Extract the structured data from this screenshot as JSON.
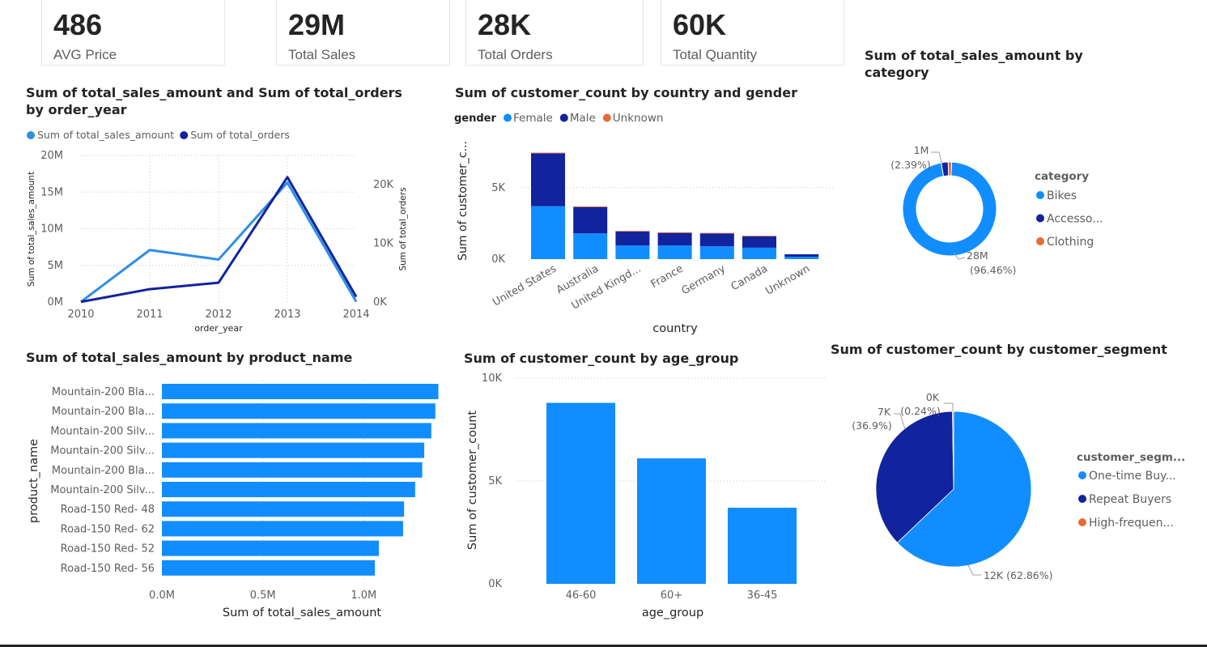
{
  "kpis": [
    {
      "value": "486",
      "label": "AVG Price"
    },
    {
      "value": "29M",
      "label": "Total Sales"
    },
    {
      "value": "28K",
      "label": "Total Orders"
    },
    {
      "value": "60K",
      "label": "Total Quantity"
    }
  ],
  "colors": {
    "blue": "#118dff",
    "dark": "#12239e",
    "orange": "#e66c37",
    "lightblue": "#2d8fe6",
    "grid": "#c8c6c4",
    "text": "#252423",
    "axis": "#605e5c"
  },
  "chart_data": [
    {
      "type": "line",
      "title": "Sum of total_sales_amount and Sum of total_orders by order_year",
      "xlabel": "order_year",
      "ylabel": "Sum of total_sales_amount",
      "y2label": "Sum of total_orders",
      "x": [
        "2010",
        "2011",
        "2012",
        "2013",
        "2014"
      ],
      "ylim": [
        0,
        20000000
      ],
      "y_ticks": [
        "0M",
        "5M",
        "10M",
        "15M",
        "20M"
      ],
      "y2lim": [
        0,
        25000
      ],
      "y2_ticks": [
        "0K",
        "10K",
        "20K"
      ],
      "legend": "top-left",
      "series": [
        {
          "name": "Sum of total_sales_amount",
          "axis": "left",
          "values": [
            40000,
            7100000,
            5800000,
            16300000,
            50000
          ]
        },
        {
          "name": "Sum of total_orders",
          "axis": "right",
          "values": [
            30,
            2200,
            3300,
            21300,
            900
          ]
        }
      ]
    },
    {
      "type": "bar",
      "stacked": true,
      "title": "Sum of customer_count by country and gender",
      "legend_title": "gender",
      "xlabel": "country",
      "ylabel": "Sum of customer_c...",
      "categories": [
        "United States",
        "Australia",
        "United Kingd...",
        "France",
        "Germany",
        "Canada",
        "Unknown"
      ],
      "ylim": [
        0,
        8500
      ],
      "y_ticks": [
        "0K",
        "5K"
      ],
      "series": [
        {
          "name": "Female",
          "values": [
            3700,
            1800,
            950,
            950,
            900,
            800,
            170
          ]
        },
        {
          "name": "Male",
          "values": [
            3700,
            1870,
            1010,
            910,
            920,
            820,
            170
          ]
        },
        {
          "name": "Unknown",
          "values": [
            50,
            10,
            10,
            10,
            10,
            10,
            0
          ]
        }
      ]
    },
    {
      "type": "pie",
      "donut": true,
      "title": "Sum of total_sales_amount by category",
      "legend_title": "category",
      "labels": [
        "Bikes",
        "Accesso...",
        "Clothing"
      ],
      "values": [
        28000000,
        700000,
        340000
      ],
      "percent": [
        96.46,
        2.39,
        1.15
      ],
      "data_labels": [
        {
          "value": "28M",
          "pct": "(96.46%)"
        },
        {
          "value": "1M",
          "pct": "(2.39%)"
        }
      ]
    },
    {
      "type": "bar",
      "orientation": "horizontal",
      "title": "Sum of total_sales_amount by product_name",
      "xlabel": "Sum of total_sales_amount",
      "ylabel": "product_name",
      "categories": [
        "Mountain-200 Bla...",
        "Mountain-200 Bla...",
        "Mountain-200 Silv...",
        "Mountain-200 Silv...",
        "Mountain-200 Bla...",
        "Mountain-200 Silv...",
        "Road-150 Red- 48",
        "Road-150 Red- 62",
        "Road-150 Red- 52",
        "Road-150 Red- 56"
      ],
      "values": [
        1370000,
        1355000,
        1335000,
        1300000,
        1290000,
        1255000,
        1200000,
        1195000,
        1075000,
        1055000
      ],
      "xlim": [
        0,
        1400000
      ],
      "x_ticks": [
        "0.0M",
        "0.5M",
        "1.0M"
      ]
    },
    {
      "type": "bar",
      "title": "Sum of customer_count by age_group",
      "xlabel": "age_group",
      "ylabel": "Sum of customer_count",
      "categories": [
        "46-60",
        "60+",
        "36-45"
      ],
      "values": [
        8800,
        6100,
        3700
      ],
      "ylim": [
        0,
        10000
      ],
      "y_ticks": [
        "0K",
        "5K",
        "10K"
      ]
    },
    {
      "type": "pie",
      "title": "Sum of customer_count by customer_segment",
      "legend_title": "customer_segm...",
      "labels": [
        "One-time Buy...",
        "Repeat Buyers",
        "High-frequen..."
      ],
      "values": [
        11600,
        6800,
        44
      ],
      "percent": [
        62.86,
        36.9,
        0.24
      ],
      "data_labels": [
        {
          "value": "12K",
          "pct": "(62.86%)"
        },
        {
          "value": "7K",
          "pct": "(36.9%)"
        },
        {
          "value": "0K",
          "pct": "(0.24%)"
        }
      ]
    }
  ]
}
